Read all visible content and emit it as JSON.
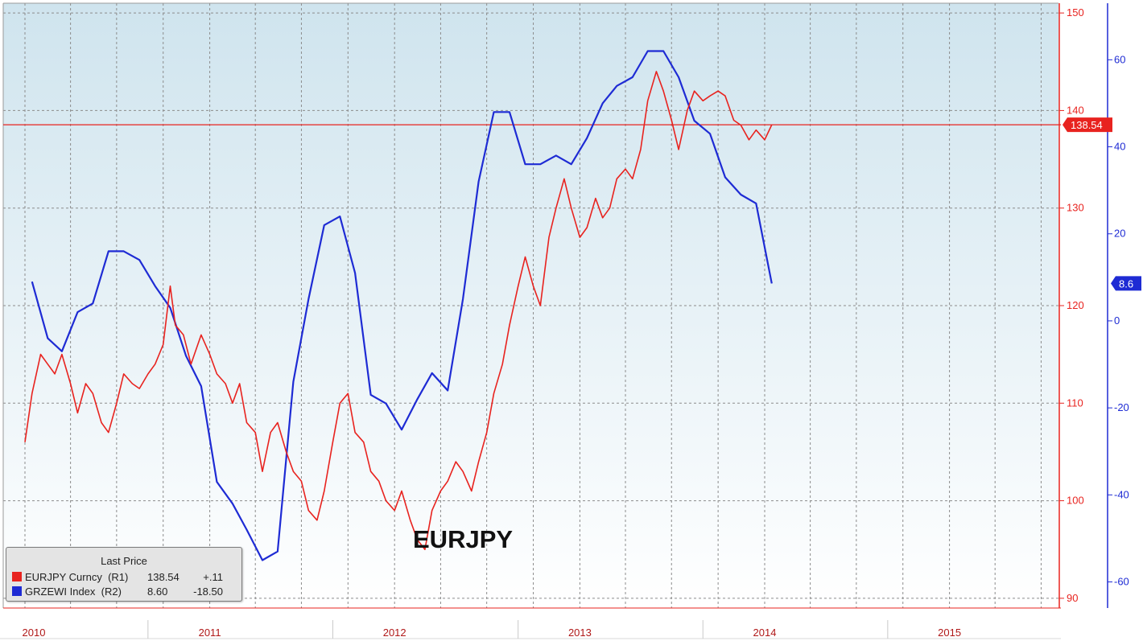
{
  "chart_data": {
    "type": "line",
    "annotation": "EURJPY",
    "x_tick_labels": [
      "2010",
      "2011",
      "2012",
      "2013",
      "2014",
      "2015"
    ],
    "axes": {
      "right1": {
        "ticks": [
          90,
          100,
          110,
          120,
          130,
          140,
          150
        ],
        "range": [
          89,
          151
        ],
        "color": "#e8231f"
      },
      "right2": {
        "ticks": [
          -60,
          -40,
          -20,
          0,
          20,
          40,
          60
        ],
        "range": [
          -66,
          73
        ],
        "color": "#1e2bd4"
      }
    },
    "last_price_markers": {
      "eurjpy": {
        "label": "138.54",
        "value": 138.54,
        "color": "#e8231f"
      },
      "zew": {
        "label": "8.6",
        "value": 8.6,
        "color": "#1e2bd4"
      }
    },
    "legend": {
      "title": "Last Price",
      "rows": [
        {
          "name": "EURJPY Curncy",
          "axis": "(R1)",
          "last": "138.54",
          "change": "+.11",
          "color": "#e8231f"
        },
        {
          "name": "GRZEWI Index",
          "axis": "(R2)",
          "last": "8.60",
          "change": "-18.50",
          "color": "#1e2bd4"
        }
      ]
    },
    "series": [
      {
        "name": "GRZEWI Index",
        "axis": "right2",
        "color": "#1e2bd4",
        "points": [
          [
            "2010-01-15",
            9.0
          ],
          [
            "2010-02-15",
            -4.0
          ],
          [
            "2010-03-15",
            -7.0
          ],
          [
            "2010-04-15",
            2.0
          ],
          [
            "2010-05-15",
            4.0
          ],
          [
            "2010-06-15",
            16.0
          ],
          [
            "2010-07-15",
            16.0
          ],
          [
            "2010-08-15",
            14.0
          ],
          [
            "2010-09-15",
            8.0
          ],
          [
            "2010-10-15",
            3.0
          ],
          [
            "2010-11-15",
            -8.0
          ],
          [
            "2010-12-15",
            -15.0
          ],
          [
            "2011-01-15",
            -37.0
          ],
          [
            "2011-02-15",
            -42.0
          ],
          [
            "2011-03-15",
            -48.0
          ],
          [
            "2011-04-15",
            -55.0
          ],
          [
            "2011-05-15",
            -53.0
          ],
          [
            "2011-06-15",
            -14.0
          ],
          [
            "2011-07-15",
            5.0
          ],
          [
            "2011-08-15",
            22.0
          ],
          [
            "2011-09-15",
            24.0
          ],
          [
            "2011-10-15",
            11.0
          ],
          [
            "2011-11-15",
            -17.0
          ],
          [
            "2011-12-15",
            -19.0
          ],
          [
            "2012-01-15",
            -25.0
          ],
          [
            "2012-02-15",
            -18.0
          ],
          [
            "2012-03-15",
            -12.0
          ],
          [
            "2012-04-15",
            -16.0
          ],
          [
            "2012-05-15",
            5.0
          ],
          [
            "2012-06-15",
            32.0
          ],
          [
            "2012-07-15",
            48.0
          ],
          [
            "2012-08-15",
            48.0
          ],
          [
            "2012-09-15",
            36.0
          ],
          [
            "2012-10-15",
            36.0
          ],
          [
            "2012-11-15",
            38.0
          ],
          [
            "2012-12-15",
            36.0
          ],
          [
            "2013-01-15",
            42.0
          ],
          [
            "2013-02-15",
            50.0
          ],
          [
            "2013-03-15",
            54.0
          ],
          [
            "2013-04-15",
            56.0
          ],
          [
            "2013-05-15",
            62.0
          ],
          [
            "2013-06-15",
            62.0
          ],
          [
            "2013-07-15",
            56.0
          ],
          [
            "2013-08-15",
            46.0
          ],
          [
            "2013-09-15",
            43.0
          ],
          [
            "2013-10-15",
            33.0
          ],
          [
            "2013-11-15",
            29.0
          ],
          [
            "2013-12-15",
            27.0
          ],
          [
            "2014-01-15",
            8.6
          ]
        ]
      },
      {
        "name": "EURJPY Curncy",
        "axis": "right1",
        "color": "#e8231f",
        "points": [
          [
            "2010-01-01",
            106.0
          ],
          [
            "2010-01-15",
            111.0
          ],
          [
            "2010-02-01",
            115.0
          ],
          [
            "2010-02-15",
            114.0
          ],
          [
            "2010-03-01",
            113.0
          ],
          [
            "2010-03-15",
            115.0
          ],
          [
            "2010-04-01",
            112.0
          ],
          [
            "2010-04-15",
            109.0
          ],
          [
            "2010-05-01",
            112.0
          ],
          [
            "2010-05-15",
            111.0
          ],
          [
            "2010-06-01",
            108.0
          ],
          [
            "2010-06-15",
            107.0
          ],
          [
            "2010-07-01",
            110.0
          ],
          [
            "2010-07-15",
            113.0
          ],
          [
            "2010-08-01",
            112.0
          ],
          [
            "2010-08-15",
            111.5
          ],
          [
            "2010-09-01",
            113.0
          ],
          [
            "2010-09-15",
            114.0
          ],
          [
            "2010-10-01",
            116.0
          ],
          [
            "2010-10-15",
            122.0
          ],
          [
            "2010-10-25",
            118.0
          ],
          [
            "2010-11-10",
            117.0
          ],
          [
            "2010-11-25",
            114.0
          ],
          [
            "2010-12-15",
            117.0
          ],
          [
            "2011-01-01",
            115.0
          ],
          [
            "2011-01-15",
            113.0
          ],
          [
            "2011-02-01",
            112.0
          ],
          [
            "2011-02-15",
            110.0
          ],
          [
            "2011-03-01",
            112.0
          ],
          [
            "2011-03-15",
            108.0
          ],
          [
            "2011-04-01",
            107.0
          ],
          [
            "2011-04-15",
            103.0
          ],
          [
            "2011-05-01",
            107.0
          ],
          [
            "2011-05-15",
            108.0
          ],
          [
            "2011-06-01",
            105.0
          ],
          [
            "2011-06-15",
            103.0
          ],
          [
            "2011-07-01",
            102.0
          ],
          [
            "2011-07-15",
            99.0
          ],
          [
            "2011-08-01",
            98.0
          ],
          [
            "2011-08-15",
            101.0
          ],
          [
            "2011-09-01",
            106.0
          ],
          [
            "2011-09-15",
            110.0
          ],
          [
            "2011-10-01",
            111.0
          ],
          [
            "2011-10-15",
            107.0
          ],
          [
            "2011-11-01",
            106.0
          ],
          [
            "2011-11-15",
            103.0
          ],
          [
            "2011-12-01",
            102.0
          ],
          [
            "2011-12-15",
            100.0
          ],
          [
            "2012-01-01",
            99.0
          ],
          [
            "2012-01-15",
            101.0
          ],
          [
            "2012-02-01",
            98.0
          ],
          [
            "2012-02-15",
            96.0
          ],
          [
            "2012-03-01",
            95.0
          ],
          [
            "2012-03-15",
            99.0
          ],
          [
            "2012-04-01",
            101.0
          ],
          [
            "2012-04-15",
            102.0
          ],
          [
            "2012-05-01",
            104.0
          ],
          [
            "2012-05-15",
            103.0
          ],
          [
            "2012-06-01",
            101.0
          ],
          [
            "2012-06-15",
            104.0
          ],
          [
            "2012-07-01",
            107.0
          ],
          [
            "2012-07-15",
            111.0
          ],
          [
            "2012-08-01",
            114.0
          ],
          [
            "2012-08-15",
            118.0
          ],
          [
            "2012-09-01",
            122.0
          ],
          [
            "2012-09-15",
            125.0
          ],
          [
            "2012-10-01",
            122.0
          ],
          [
            "2012-10-15",
            120.0
          ],
          [
            "2012-11-01",
            127.0
          ],
          [
            "2012-11-15",
            130.0
          ],
          [
            "2012-12-01",
            133.0
          ],
          [
            "2012-12-15",
            130.0
          ],
          [
            "2013-01-01",
            127.0
          ],
          [
            "2013-01-15",
            128.0
          ],
          [
            "2013-02-01",
            131.0
          ],
          [
            "2013-02-15",
            129.0
          ],
          [
            "2013-03-01",
            130.0
          ],
          [
            "2013-03-15",
            133.0
          ],
          [
            "2013-04-01",
            134.0
          ],
          [
            "2013-04-15",
            133.0
          ],
          [
            "2013-05-01",
            136.0
          ],
          [
            "2013-05-15",
            141.0
          ],
          [
            "2013-06-01",
            144.0
          ],
          [
            "2013-06-15",
            142.0
          ],
          [
            "2013-07-01",
            139.0
          ],
          [
            "2013-07-15",
            136.0
          ],
          [
            "2013-08-01",
            140.0
          ],
          [
            "2013-08-15",
            142.0
          ],
          [
            "2013-09-01",
            141.0
          ],
          [
            "2013-09-15",
            141.5
          ],
          [
            "2013-10-01",
            142.0
          ],
          [
            "2013-10-15",
            141.5
          ],
          [
            "2013-11-01",
            139.0
          ],
          [
            "2013-11-15",
            138.5
          ],
          [
            "2013-12-01",
            137.0
          ],
          [
            "2013-12-15",
            138.0
          ],
          [
            "2014-01-01",
            137.0
          ],
          [
            "2014-01-15",
            138.54
          ]
        ]
      }
    ]
  }
}
